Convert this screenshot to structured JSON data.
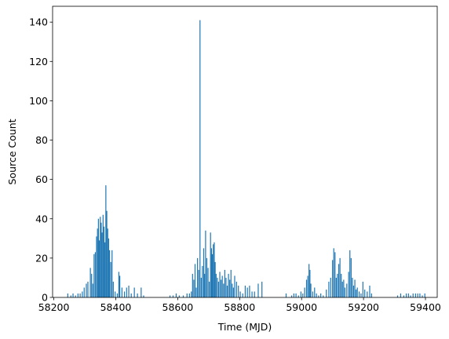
{
  "chart_data": {
    "type": "bar",
    "xlabel": "Time (MJD)",
    "ylabel": "Source Count",
    "color": "#1f77b4",
    "x": [
      58245,
      58255,
      58262,
      58270,
      58278,
      58285,
      58292,
      58298,
      58305,
      58310,
      58318,
      58322,
      58326,
      58330,
      58334,
      58338,
      58341,
      58344,
      58347,
      58350,
      58353,
      58356,
      58359,
      58362,
      58365,
      58368,
      58371,
      58374,
      58377,
      58380,
      58384,
      58388,
      58392,
      58398,
      58405,
      58410,
      58413,
      58420,
      58428,
      58435,
      58442,
      58450,
      58460,
      58470,
      58482,
      58490,
      58575,
      58585,
      58595,
      58605,
      58618,
      58630,
      58638,
      58644,
      58648,
      58652,
      58656,
      58660,
      58664,
      58668,
      58672,
      58676,
      58680,
      58684,
      58687,
      58690,
      58694,
      58698,
      58702,
      58706,
      58709,
      58712,
      58715,
      58718,
      58721,
      58724,
      58728,
      58732,
      58736,
      58740,
      58744,
      58748,
      58752,
      58756,
      58760,
      58764,
      58768,
      58772,
      58776,
      58780,
      58784,
      58790,
      58796,
      58802,
      58810,
      58818,
      58825,
      58832,
      58840,
      58848,
      58860,
      58872,
      58950,
      58968,
      58975,
      58982,
      58990,
      58998,
      59004,
      59010,
      59016,
      59020,
      59024,
      59027,
      59030,
      59036,
      59042,
      59048,
      59055,
      59062,
      59070,
      59080,
      59088,
      59094,
      59100,
      59104,
      59108,
      59112,
      59116,
      59120,
      59124,
      59128,
      59132,
      59136,
      59140,
      59146,
      59152,
      59156,
      59160,
      59164,
      59168,
      59172,
      59176,
      59180,
      59186,
      59192,
      59198,
      59204,
      59212,
      59220,
      59226,
      59310,
      59320,
      59330,
      59338,
      59345,
      59352,
      59360,
      59368,
      59375,
      59382,
      59390,
      59398
    ],
    "values": [
      2,
      1,
      2,
      1,
      2,
      2,
      3,
      5,
      7,
      8,
      15,
      12,
      7,
      22,
      23,
      31,
      35,
      40,
      29,
      41,
      38,
      33,
      42,
      36,
      28,
      57,
      44,
      35,
      30,
      24,
      18,
      24,
      8,
      3,
      2,
      13,
      11,
      5,
      3,
      5,
      6,
      2,
      5,
      2,
      5,
      1,
      1,
      1,
      2,
      1,
      1,
      2,
      2,
      3,
      12,
      9,
      17,
      5,
      20,
      14,
      141,
      10,
      16,
      25,
      12,
      34,
      20,
      15,
      8,
      33,
      25,
      22,
      27,
      28,
      18,
      12,
      10,
      8,
      13,
      9,
      11,
      7,
      14,
      10,
      6,
      12,
      9,
      14,
      7,
      5,
      11,
      8,
      6,
      3,
      2,
      6,
      5,
      6,
      3,
      3,
      7,
      8,
      2,
      1,
      2,
      2,
      1,
      3,
      2,
      5,
      9,
      11,
      17,
      14,
      7,
      3,
      5,
      2,
      1,
      2,
      1,
      4,
      8,
      10,
      19,
      25,
      23,
      10,
      12,
      17,
      20,
      12,
      8,
      9,
      5,
      7,
      13,
      24,
      20,
      10,
      6,
      9,
      4,
      5,
      3,
      2,
      8,
      4,
      3,
      6,
      2,
      1,
      2,
      1,
      2,
      2,
      1,
      2,
      2,
      2,
      2,
      1,
      2
    ],
    "xlim": [
      58196,
      59438
    ],
    "ylim": [
      0,
      148.05
    ],
    "xticks": [
      58200,
      58400,
      58600,
      58800,
      59000,
      59200,
      59400
    ],
    "yticks": [
      0,
      20,
      40,
      60,
      80,
      100,
      120,
      140
    ]
  }
}
